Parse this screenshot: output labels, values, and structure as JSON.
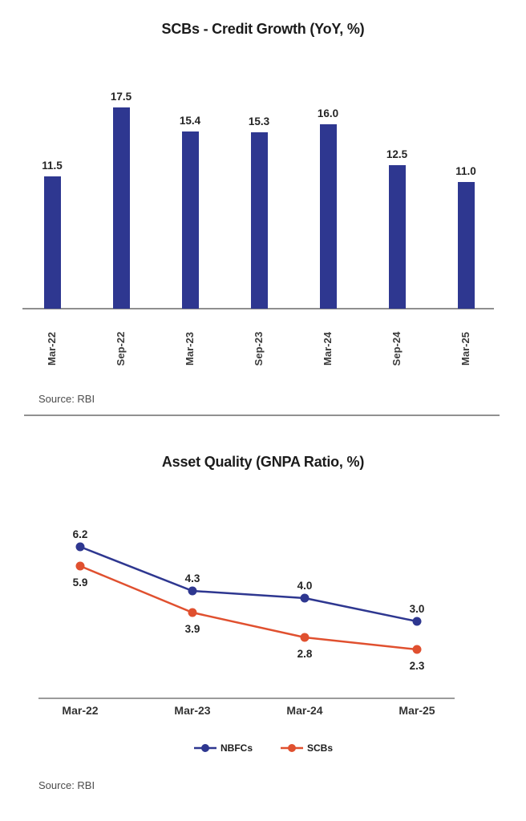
{
  "chart_data": [
    {
      "type": "bar",
      "title": "SCBs - Credit Growth (YoY, %)",
      "categories": [
        "Mar-22",
        "Sep-22",
        "Mar-23",
        "Sep-23",
        "Mar-24",
        "Sep-24",
        "Mar-25"
      ],
      "values": [
        11.5,
        17.5,
        15.4,
        15.3,
        16.0,
        12.5,
        11.0
      ],
      "data_labels": [
        "11.5",
        "17.5",
        "15.4",
        "15.3",
        "16.0",
        "12.5",
        "11.0"
      ],
      "bar_color": "#2e3790",
      "xlabel": "",
      "ylabel": "",
      "ylim": [
        0,
        20
      ],
      "grid": "off",
      "x_tick_rotation": 90,
      "source": "Source: RBI"
    },
    {
      "type": "line",
      "title": "Asset Quality (GNPA Ratio, %)",
      "categories": [
        "Mar-22",
        "Mar-23",
        "Mar-24",
        "Mar-25"
      ],
      "series": [
        {
          "name": "NBFCs",
          "values": [
            6.2,
            4.3,
            4.0,
            3.0
          ],
          "labels": [
            "6.2",
            "4.3",
            "4.0",
            "3.0"
          ],
          "color": "#2e3790",
          "label_position": "above"
        },
        {
          "name": "SCBs",
          "values": [
            5.9,
            3.9,
            2.8,
            2.3
          ],
          "labels": [
            "5.9",
            "3.9",
            "2.8",
            "2.3"
          ],
          "color": "#e0502f",
          "label_position": "below"
        }
      ],
      "xlabel": "",
      "ylabel": "",
      "grid": "off",
      "legend_position": "bottom",
      "source": "Source: RBI"
    }
  ]
}
